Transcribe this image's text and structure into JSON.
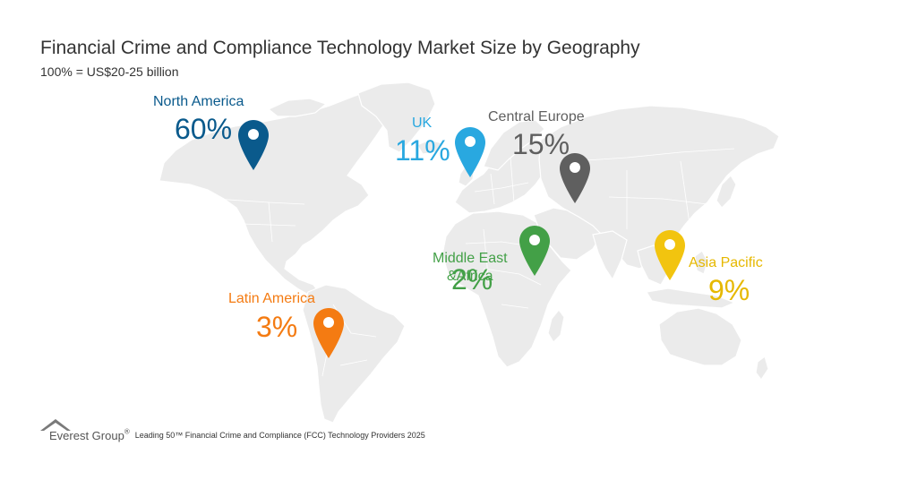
{
  "title": "Financial Crime and Compliance Technology Market Size by Geography",
  "subtitle": "100% = US$20-25 billion",
  "colors": {
    "north_america": "#0a5a8c",
    "uk": "#29a8e0",
    "central_europe": "#5f5f5f",
    "middle_east_africa": "#43a047",
    "asia_pacific": "#f2c40f",
    "latin_america": "#f47b12",
    "map_land": "#ebebeb"
  },
  "chart_data": {
    "type": "map",
    "title": "Financial Crime and Compliance Technology Market Size by Geography",
    "subtitle": "100% = US$20-25 billion",
    "regions": [
      {
        "name": "North America",
        "percent_label": "60%",
        "value": 60,
        "color": "#0a5a8c"
      },
      {
        "name": "UK",
        "percent_label": "11%",
        "value": 11,
        "color": "#29a8e0"
      },
      {
        "name": "Central Europe",
        "percent_label": "15%",
        "value": 15,
        "color": "#5f5f5f"
      },
      {
        "name": "Middle East\n&Africa",
        "percent_label": "2%",
        "value": 2,
        "color": "#43a047"
      },
      {
        "name": "Asia Pacific",
        "percent_label": "9%",
        "value": 9,
        "color": "#f2c40f"
      },
      {
        "name": "Latin America",
        "percent_label": "3%",
        "value": 3,
        "color": "#f47b12"
      }
    ]
  },
  "footer": {
    "brand": "Everest Group",
    "brand_mark": "®",
    "caption": "Leading 50™ Financial Crime and Compliance (FCC) Technology Providers 2025"
  }
}
